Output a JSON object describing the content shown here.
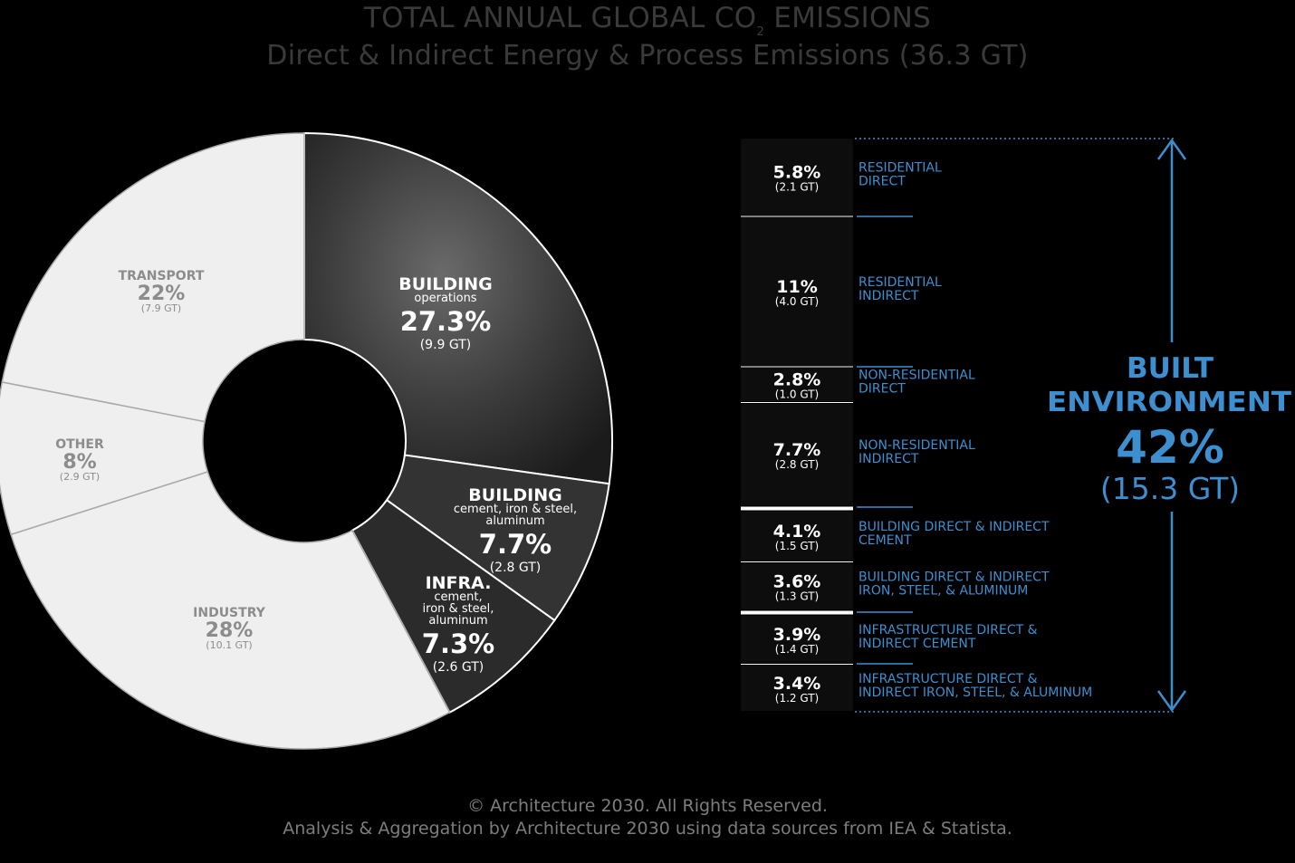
{
  "title": {
    "line1_main": "TOTAL ANNUAL GLOBAL CO",
    "line1_sub": "2",
    "line1_end": " EMISSIONS",
    "line2": "Direct & Indirect Energy & Process Emissions (36.3 GT)"
  },
  "chart_data": [
    {
      "type": "pie",
      "style": "donut",
      "slices": [
        {
          "name": "BUILDING",
          "sublabel": "operations",
          "pct_label": "27.3%",
          "gt_label": "(9.9 GT)",
          "value": 27.3,
          "gt": 9.9,
          "color": "#3e3e3e",
          "text_color": "#ffffff"
        },
        {
          "name": "BUILDING",
          "sublabel": "cement, iron & steel, aluminum",
          "pct_label": "7.7%",
          "gt_label": "(2.8 GT)",
          "value": 7.7,
          "gt": 2.8,
          "color": "#333333",
          "text_color": "#ffffff"
        },
        {
          "name": "INFRA.",
          "sublabel": "cement, iron & steel, aluminum",
          "pct_label": "7.3%",
          "gt_label": "(2.6 GT)",
          "value": 7.3,
          "gt": 2.6,
          "color": "#2b2b2b",
          "text_color": "#ffffff"
        },
        {
          "name": "INDUSTRY",
          "sublabel": "",
          "pct_label": "28%",
          "gt_label": "(10.1 GT)",
          "value": 28,
          "gt": 10.1,
          "color": "#efefef",
          "text_color": "#8c8c8c"
        },
        {
          "name": "OTHER",
          "sublabel": "",
          "pct_label": "8%",
          "gt_label": "(2.9 GT)",
          "value": 8,
          "gt": 2.9,
          "color": "#efefef",
          "text_color": "#8c8c8c"
        },
        {
          "name": "TRANSPORT",
          "sublabel": "",
          "pct_label": "22%",
          "gt_label": "(7.9 GT)",
          "value": 22,
          "gt": 7.9,
          "color": "#efefef",
          "text_color": "#8c8c8c"
        }
      ]
    },
    {
      "type": "table",
      "rows": [
        {
          "pct": "5.8%",
          "gt": "(2.1 GT)",
          "value": 5.8,
          "label1": "RESIDENTIAL",
          "label2": "DIRECT"
        },
        {
          "pct": "11%",
          "gt": "(4.0 GT)",
          "value": 11,
          "label1": "RESIDENTIAL",
          "label2": "INDIRECT"
        },
        {
          "pct": "2.8%",
          "gt": "(1.0 GT)",
          "value": 2.8,
          "label1": "NON-RESIDENTIAL",
          "label2": "DIRECT"
        },
        {
          "pct": "7.7%",
          "gt": "(2.8 GT)",
          "value": 7.7,
          "label1": "NON-RESIDENTIAL",
          "label2": "INDIRECT"
        },
        {
          "pct": "4.1%",
          "gt": "(1.5 GT)",
          "value": 4.1,
          "label1": "BUILDING DIRECT & INDIRECT",
          "label2": "CEMENT"
        },
        {
          "pct": "3.6%",
          "gt": "(1.3 GT)",
          "value": 3.6,
          "label1": "BUILDING DIRECT & INDIRECT",
          "label2": "IRON, STEEL, & ALUMINUM"
        },
        {
          "pct": "3.9%",
          "gt": "(1.4 GT)",
          "value": 3.9,
          "label1": "INFRASTRUCTURE DIRECT &",
          "label2": "INDIRECT CEMENT"
        },
        {
          "pct": "3.4%",
          "gt": "(1.2 GT)",
          "value": 3.4,
          "label1": "INFRASTRUCTURE DIRECT &",
          "label2": "INDIRECT IRON, STEEL, & ALUMINUM"
        }
      ],
      "summary": {
        "line1": "BUILT",
        "line2": "ENVIRONMENT",
        "pct": "42%",
        "gt": "(15.3 GT)",
        "value": 42
      }
    }
  ],
  "footer": {
    "line1": "© Architecture 2030. All Rights Reserved.",
    "line2": "Analysis & Aggregation by Architecture 2030 using data sources from IEA & Statista."
  },
  "colors": {
    "background": "#000000",
    "accent_blue": "#3d8fd0",
    "title_gray": "#3a3a3a",
    "footer_gray": "#7d7d7d",
    "light_slice": "#efefef"
  }
}
